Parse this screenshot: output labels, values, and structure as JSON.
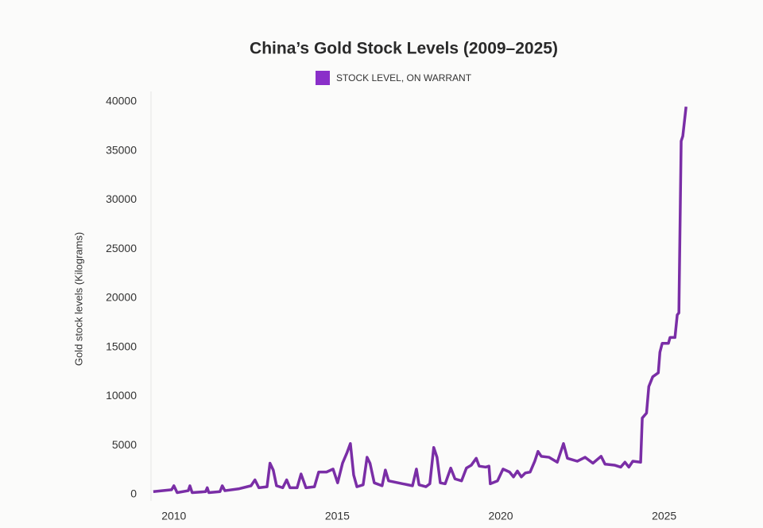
{
  "chart_data": {
    "type": "line",
    "title": "China’s Gold Stock Levels (2009–2025)",
    "y_label": "Gold stock levels (Kilograms)",
    "xlim": [
      2009.3,
      2026.2
    ],
    "xticks": [
      2010,
      2015,
      2020,
      2025
    ],
    "ylim": [
      0,
      40000
    ],
    "yticks": [
      0,
      5000,
      10000,
      15000,
      20000,
      25000,
      30000,
      35000,
      40000
    ],
    "grid": false,
    "legend": "top",
    "x": [
      2009.37,
      2009.93,
      2010.0,
      2010.1,
      2010.44,
      2010.49,
      2010.56,
      2010.97,
      2011.02,
      2011.07,
      2011.41,
      2011.48,
      2011.56,
      2012.0,
      2012.36,
      2012.48,
      2012.6,
      2012.85,
      2012.94,
      2013.04,
      2013.14,
      2013.33,
      2013.45,
      2013.55,
      2013.77,
      2013.89,
      2014.04,
      2014.3,
      2014.43,
      2014.67,
      2014.87,
      2015.01,
      2015.16,
      2015.3,
      2015.4,
      2015.5,
      2015.6,
      2015.79,
      2015.91,
      2016.0,
      2016.13,
      2016.37,
      2016.47,
      2016.57,
      2016.86,
      2017.15,
      2017.3,
      2017.42,
      2017.5,
      2017.71,
      2017.83,
      2017.95,
      2018.05,
      2018.15,
      2018.3,
      2018.47,
      2018.6,
      2018.8,
      2018.95,
      2019.1,
      2019.25,
      2019.34,
      2019.54,
      2019.64,
      2019.68,
      2019.9,
      2020.07,
      2020.27,
      2020.39,
      2020.51,
      2020.63,
      2020.75,
      2020.9,
      2021.04,
      2021.14,
      2021.24,
      2021.48,
      2021.73,
      2021.92,
      2022.04,
      2022.34,
      2022.58,
      2022.82,
      2023.07,
      2023.19,
      2023.48,
      2023.67,
      2023.8,
      2023.92,
      2024.04,
      2024.28,
      2024.33,
      2024.46,
      2024.53,
      2024.65,
      2024.82,
      2024.87,
      2024.94,
      2025.13,
      2025.18,
      2025.33,
      2025.4,
      2025.45,
      2025.52,
      2025.57,
      2025.67
    ],
    "series": [
      {
        "name": "STOCK LEVEL, ON WARRANT",
        "color": "#7a2ea6",
        "values": [
          300,
          500,
          900,
          200,
          400,
          900,
          200,
          300,
          700,
          200,
          300,
          900,
          400,
          600,
          900,
          1500,
          700,
          800,
          3200,
          2500,
          900,
          700,
          1500,
          700,
          700,
          2100,
          700,
          800,
          2300,
          2300,
          2600,
          1200,
          3200,
          4300,
          5200,
          2000,
          800,
          1000,
          3800,
          3200,
          1200,
          900,
          2500,
          1400,
          1200,
          1000,
          900,
          2600,
          1000,
          800,
          1100,
          4800,
          3800,
          1200,
          1100,
          2700,
          1600,
          1400,
          2700,
          3000,
          3700,
          2900,
          2800,
          2900,
          1100,
          1400,
          2600,
          2300,
          1800,
          2400,
          1800,
          2200,
          2300,
          3400,
          4400,
          3900,
          3800,
          3300,
          5200,
          3700,
          3400,
          3800,
          3200,
          3900,
          3100,
          3000,
          2800,
          3300,
          2800,
          3400,
          3300,
          7800,
          8300,
          11000,
          12000,
          12400,
          14500,
          15400,
          15400,
          16000,
          16000,
          18300,
          18500,
          36000,
          36500,
          39500
        ]
      }
    ]
  }
}
